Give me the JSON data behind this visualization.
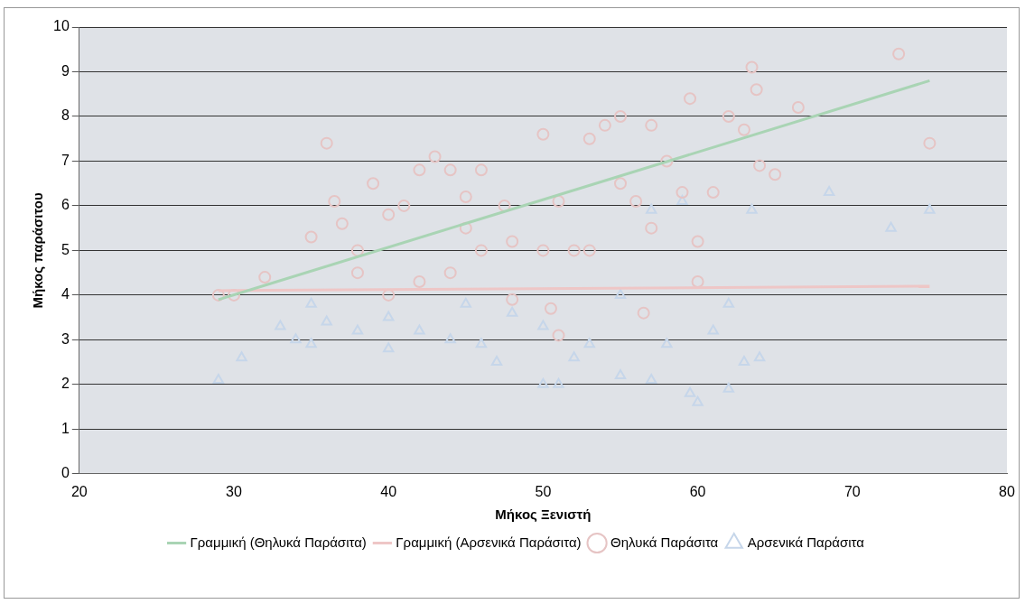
{
  "chart_data": {
    "type": "scatter",
    "xlabel": "Μήκος Ξενιστή",
    "ylabel": "Μήκος παράσιτου",
    "xlim": [
      20,
      80
    ],
    "xticks": [
      20,
      30,
      40,
      50,
      60,
      70,
      80
    ],
    "ylim": [
      0,
      10
    ],
    "yticks": [
      0,
      1,
      2,
      3,
      4,
      5,
      6,
      7,
      8,
      9,
      10
    ],
    "grid": "y",
    "legend": "bottom",
    "series": [
      {
        "name": "Θηλυκά Παράσιτα",
        "color": "#e6c4c4",
        "marker": "circle",
        "x": [
          29,
          30,
          32,
          36,
          36.5,
          35,
          37,
          38,
          39,
          40,
          41,
          42,
          43,
          44,
          45,
          45,
          46,
          47.5,
          48,
          50,
          50.5,
          51,
          51,
          52,
          53,
          54,
          55,
          56,
          56.5,
          57,
          58,
          59,
          59.5,
          60,
          60,
          61,
          62,
          63,
          63.5,
          63.8,
          64,
          65,
          66.5,
          73,
          75,
          40,
          42,
          44,
          53,
          55,
          57,
          46,
          38,
          48,
          50
        ],
        "values": [
          4.0,
          4.0,
          4.4,
          7.4,
          6.1,
          5.3,
          5.6,
          5.0,
          6.5,
          5.8,
          6.0,
          6.8,
          7.1,
          6.8,
          6.2,
          5.5,
          5.0,
          6.0,
          5.2,
          7.6,
          3.7,
          3.1,
          6.1,
          5.0,
          7.5,
          7.8,
          8.0,
          6.1,
          3.6,
          7.8,
          7.0,
          6.3,
          8.4,
          5.2,
          4.3,
          6.3,
          8.0,
          7.7,
          9.1,
          8.6,
          6.9,
          6.7,
          8.2,
          9.4,
          7.4,
          4.0,
          4.3,
          4.5,
          5.0,
          6.5,
          5.5,
          6.8,
          4.5,
          3.9,
          5.0
        ]
      },
      {
        "name": "Αρσενικά Παράσιτα",
        "color": "#c6d6ea",
        "marker": "triangle",
        "x": [
          29,
          30.5,
          33,
          34,
          35,
          36,
          38,
          40,
          42,
          44,
          46,
          48,
          50,
          51,
          52,
          53,
          55,
          57,
          58,
          59.5,
          60,
          62,
          62,
          63,
          64,
          63.5,
          68.5,
          72.5,
          75,
          57,
          59,
          55,
          45,
          40,
          35,
          50,
          47,
          61
        ],
        "values": [
          2.1,
          2.6,
          3.3,
          3.0,
          2.9,
          3.4,
          3.2,
          2.8,
          3.2,
          3.0,
          2.9,
          3.6,
          2.0,
          2.0,
          2.6,
          2.9,
          2.2,
          2.1,
          2.9,
          1.8,
          1.6,
          1.9,
          3.8,
          2.5,
          2.6,
          5.9,
          6.3,
          5.5,
          5.9,
          5.9,
          6.1,
          4.0,
          3.8,
          3.5,
          3.8,
          3.3,
          2.5,
          3.2
        ]
      },
      {
        "name": "Γραμμική (Θηλυκά Παράσιτα)",
        "type": "line",
        "color": "#a9d4b4",
        "x": [
          29,
          75
        ],
        "values": [
          3.9,
          8.8
        ]
      },
      {
        "name": "Γραμμική (Αρσενικά Παράσιτα)",
        "type": "line",
        "color": "#eec6c6",
        "x": [
          29,
          75
        ],
        "values": [
          4.1,
          4.2
        ]
      }
    ]
  }
}
